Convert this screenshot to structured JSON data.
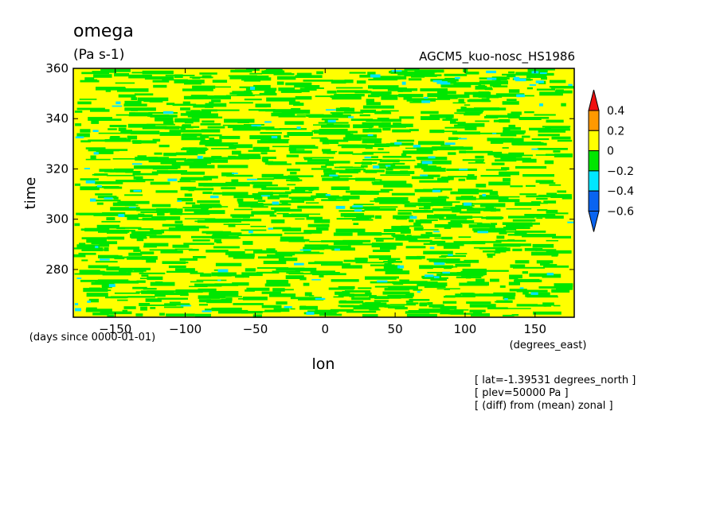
{
  "chart_data": {
    "type": "heatmap",
    "title": "omega",
    "units": "(Pa s-1)",
    "subtitle_right": "AGCM5_kuo-nosc_HS1986",
    "xlabel": "lon",
    "xunits": "(degrees_east)",
    "ylabel": "time",
    "yunits": "(days since 0000-01-01)",
    "xlim": [
      -180,
      178
    ],
    "ylim": [
      261,
      360
    ],
    "x_ticks": [
      -150,
      -100,
      -50,
      0,
      50,
      100,
      150
    ],
    "y_ticks": [
      280,
      300,
      320,
      340,
      360
    ],
    "colorbar": {
      "levels": [
        -0.6,
        -0.4,
        -0.2,
        0,
        0.2,
        0.4
      ],
      "level_labels": [
        "-0.6",
        "-0.4",
        "-0.2",
        "0",
        "0.2",
        "0.4"
      ],
      "colors": [
        "#0a64f0",
        "#00e6ff",
        "#00e600",
        "#ffff00",
        "#ff9900",
        "#f01010"
      ],
      "extend": "both"
    },
    "field_description_colors": {
      "background_band": "#ffff00",
      "negative_band": "#00e600",
      "strong_negative_band": "#00e6ff"
    },
    "grid": false
  },
  "annotations": [
    "[ lat=-1.39531 degrees_north ]",
    "[ plev=50000 Pa ]",
    "[ (diff) from (mean) zonal ]"
  ]
}
